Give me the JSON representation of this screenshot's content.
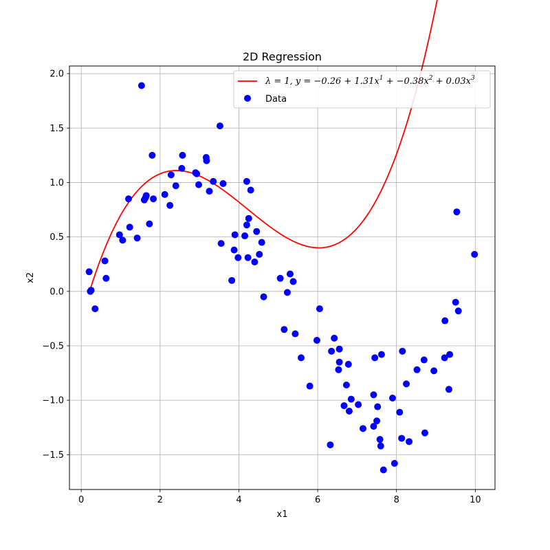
{
  "chart_data": {
    "type": "scatter",
    "title": "2D Regression",
    "xlabel": "x1",
    "ylabel": "x2",
    "xlim": [
      -0.3,
      10.5
    ],
    "ylim": [
      -1.82,
      2.07
    ],
    "x_ticks": [
      0,
      2,
      4,
      6,
      8,
      10
    ],
    "y_ticks": [
      -1.5,
      -1.0,
      -0.5,
      0.0,
      0.5,
      1.0,
      1.5,
      2.0
    ],
    "x_tick_labels": [
      "0",
      "2",
      "4",
      "6",
      "8",
      "10"
    ],
    "y_tick_labels": [
      "−1.5",
      "−1.0",
      "−0.5",
      "0.0",
      "0.5",
      "1.0",
      "1.5",
      "2.0"
    ],
    "grid": true,
    "legend_position": "top-right",
    "fit": {
      "name_parts": {
        "lambda": "λ = 1, y = −0.26 + 1.31x",
        "e1": "1",
        "mid": " + −0.38x",
        "e2": "2",
        "tail": " + 0.03x",
        "e3": "3"
      },
      "coefficients": [
        -0.26,
        1.31,
        -0.38,
        0.03
      ],
      "x_range": [
        0.2,
        9.95
      ],
      "color": "#ff0000"
    },
    "series": [
      {
        "name": "Data",
        "color": "#0000ff",
        "points": [
          [
            0.2,
            0.18
          ],
          [
            0.23,
            0.0
          ],
          [
            0.25,
            0.01
          ],
          [
            0.35,
            -0.16
          ],
          [
            0.6,
            0.28
          ],
          [
            0.63,
            0.12
          ],
          [
            0.97,
            0.52
          ],
          [
            1.05,
            0.47
          ],
          [
            1.2,
            0.85
          ],
          [
            1.23,
            0.59
          ],
          [
            1.42,
            0.49
          ],
          [
            1.53,
            1.89
          ],
          [
            1.6,
            0.84
          ],
          [
            1.63,
            0.86
          ],
          [
            1.65,
            0.88
          ],
          [
            1.73,
            0.62
          ],
          [
            1.8,
            1.25
          ],
          [
            1.83,
            0.85
          ],
          [
            2.12,
            0.89
          ],
          [
            2.25,
            0.79
          ],
          [
            2.28,
            1.07
          ],
          [
            2.4,
            0.97
          ],
          [
            2.55,
            1.13
          ],
          [
            2.57,
            1.25
          ],
          [
            2.9,
            1.09
          ],
          [
            2.93,
            1.08
          ],
          [
            2.98,
            0.98
          ],
          [
            3.17,
            1.23
          ],
          [
            3.18,
            1.2
          ],
          [
            3.25,
            0.92
          ],
          [
            3.35,
            1.01
          ],
          [
            3.52,
            1.52
          ],
          [
            3.55,
            0.44
          ],
          [
            3.6,
            0.99
          ],
          [
            3.82,
            0.1
          ],
          [
            3.9,
            0.52
          ],
          [
            3.88,
            0.38
          ],
          [
            3.98,
            0.31
          ],
          [
            4.15,
            0.51
          ],
          [
            4.2,
            1.01
          ],
          [
            4.2,
            0.61
          ],
          [
            4.23,
            0.31
          ],
          [
            4.25,
            0.67
          ],
          [
            4.3,
            0.93
          ],
          [
            4.4,
            0.27
          ],
          [
            4.45,
            0.55
          ],
          [
            4.52,
            0.34
          ],
          [
            4.58,
            0.45
          ],
          [
            4.63,
            -0.05
          ],
          [
            5.05,
            0.12
          ],
          [
            5.15,
            -0.35
          ],
          [
            5.23,
            -0.01
          ],
          [
            5.3,
            0.16
          ],
          [
            5.38,
            0.09
          ],
          [
            5.43,
            -0.39
          ],
          [
            5.58,
            -0.61
          ],
          [
            5.8,
            -0.87
          ],
          [
            5.98,
            -0.45
          ],
          [
            6.05,
            -0.16
          ],
          [
            6.32,
            -1.41
          ],
          [
            6.35,
            -0.55
          ],
          [
            6.42,
            -0.43
          ],
          [
            6.53,
            -0.72
          ],
          [
            6.55,
            -0.53
          ],
          [
            6.55,
            -0.65
          ],
          [
            6.67,
            -1.05
          ],
          [
            6.73,
            -0.86
          ],
          [
            6.78,
            -0.67
          ],
          [
            6.8,
            -1.1
          ],
          [
            6.85,
            -0.99
          ],
          [
            7.03,
            -1.04
          ],
          [
            7.15,
            -1.26
          ],
          [
            7.42,
            -0.95
          ],
          [
            7.42,
            -1.24
          ],
          [
            7.45,
            -0.61
          ],
          [
            7.5,
            -1.19
          ],
          [
            7.52,
            -1.06
          ],
          [
            7.58,
            -1.36
          ],
          [
            7.6,
            -1.42
          ],
          [
            7.62,
            -0.58
          ],
          [
            7.67,
            -1.64
          ],
          [
            7.9,
            -0.98
          ],
          [
            7.95,
            -1.58
          ],
          [
            8.08,
            -1.11
          ],
          [
            8.13,
            -1.35
          ],
          [
            8.15,
            -0.55
          ],
          [
            8.25,
            -0.85
          ],
          [
            8.32,
            -1.38
          ],
          [
            8.52,
            -0.72
          ],
          [
            8.7,
            -0.63
          ],
          [
            8.72,
            -1.3
          ],
          [
            8.95,
            -0.73
          ],
          [
            9.22,
            -0.61
          ],
          [
            9.23,
            -0.27
          ],
          [
            9.33,
            -0.9
          ],
          [
            9.35,
            -0.58
          ],
          [
            9.5,
            -0.1
          ],
          [
            9.53,
            0.73
          ],
          [
            9.57,
            -0.18
          ],
          [
            9.98,
            0.34
          ]
        ]
      }
    ]
  }
}
